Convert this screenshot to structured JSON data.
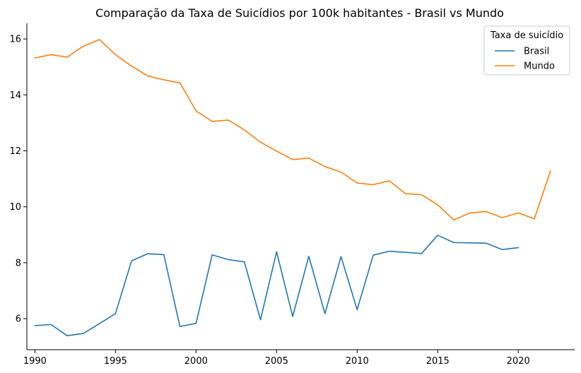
{
  "chart_data": {
    "type": "line",
    "title": "Comparação da Taxa de Suicídios por 100k habitantes - Brasil vs Mundo",
    "xlabel": "",
    "ylabel": "",
    "xlim": [
      1989.5,
      2023.5
    ],
    "ylim": [
      4.89,
      16.56
    ],
    "xticks": [
      1990,
      1995,
      2000,
      2005,
      2010,
      2015,
      2020
    ],
    "yticks": [
      6,
      8,
      10,
      12,
      14,
      16
    ],
    "grid": false,
    "legend": {
      "title": "Taxa de suicídio",
      "placement": "top-right"
    },
    "series": [
      {
        "name": "Brasil",
        "color": "#1f77b4",
        "x": [
          1990,
          1991,
          1992,
          1993,
          1994,
          1995,
          1996,
          1997,
          1998,
          1999,
          2000,
          2001,
          2002,
          2003,
          2004,
          2005,
          2006,
          2007,
          2008,
          2009,
          2010,
          2011,
          2012,
          2013,
          2014,
          2015,
          2016,
          2017,
          2018,
          2019,
          2020
        ],
        "values": [
          5.75,
          5.79,
          5.39,
          5.47,
          5.82,
          6.18,
          8.07,
          8.32,
          8.29,
          5.72,
          5.83,
          8.28,
          8.11,
          8.03,
          5.96,
          8.39,
          6.08,
          8.23,
          6.18,
          8.22,
          6.32,
          8.27,
          8.41,
          8.37,
          8.33,
          8.98,
          8.72,
          8.71,
          8.7,
          8.47,
          8.54
        ]
      },
      {
        "name": "Mundo",
        "color": "#ff7f0e",
        "x": [
          1990,
          1991,
          1992,
          1993,
          1994,
          1995,
          1996,
          1997,
          1998,
          1999,
          2000,
          2001,
          2002,
          2003,
          2004,
          2005,
          2006,
          2007,
          2008,
          2009,
          2010,
          2011,
          2012,
          2013,
          2014,
          2015,
          2016,
          2017,
          2018,
          2019,
          2020,
          2021,
          2022
        ],
        "values": [
          15.32,
          15.44,
          15.35,
          15.74,
          15.98,
          15.44,
          15.03,
          14.68,
          14.54,
          14.43,
          13.43,
          13.05,
          13.1,
          12.75,
          12.31,
          11.99,
          11.69,
          11.74,
          11.44,
          11.24,
          10.85,
          10.79,
          10.93,
          10.47,
          10.43,
          10.07,
          9.53,
          9.78,
          9.83,
          9.61,
          9.78,
          9.57,
          11.28
        ]
      }
    ]
  }
}
